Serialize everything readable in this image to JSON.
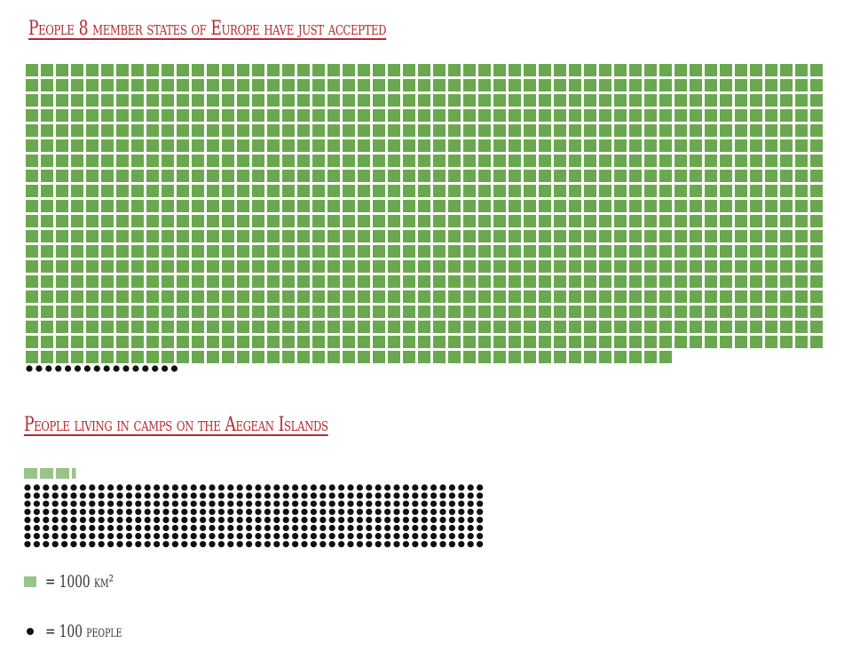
{
  "chart_data": [
    {
      "type": "waffle",
      "title": "People 8 member states of Europe have just accepted",
      "series": [
        {
          "unit": "area",
          "count": 1050,
          "color": "#6aa84f"
        },
        {
          "unit": "people",
          "count": 16,
          "color": "#111111"
        }
      ]
    },
    {
      "type": "waffle",
      "title": "People living in camps on the Aegean Islands",
      "series": [
        {
          "unit": "area",
          "count": 3.3,
          "color": "#98c48a"
        },
        {
          "unit": "people",
          "count": 400,
          "color": "#111111"
        }
      ]
    }
  ],
  "legend": {
    "area_label": "= 1000 km²",
    "people_label": "= 100 people",
    "area_color": "#98c48a",
    "people_color": "#111111"
  }
}
